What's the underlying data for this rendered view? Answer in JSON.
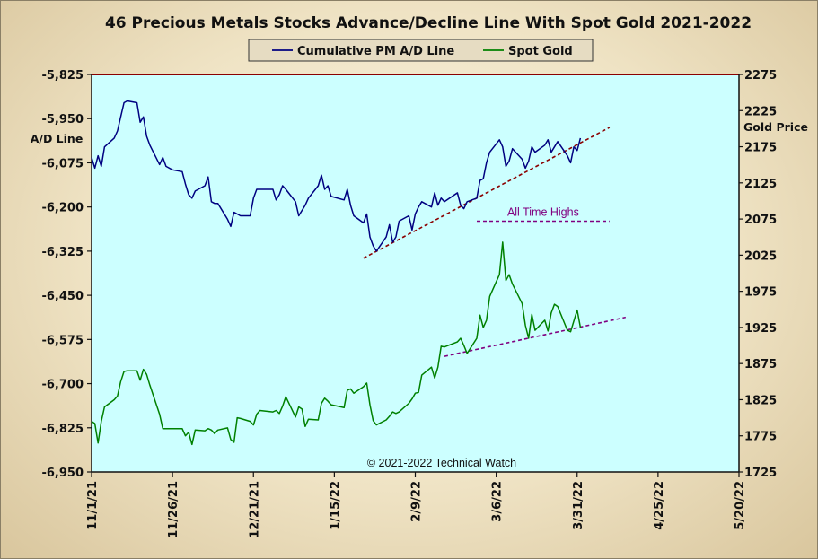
{
  "chart_data": {
    "type": "line",
    "title": "46 Precious Metals Stocks Advance/Decline Line With Spot Gold 2021-2022",
    "legend": {
      "placement": "top-center",
      "entries": [
        "Cumulative PM A/D Line",
        "Spot Gold"
      ]
    },
    "x_tick_labels": [
      "11/1/21",
      "11/26/21",
      "12/21/21",
      "1/15/22",
      "2/9/22",
      "3/6/22",
      "3/31/22",
      "4/25/22",
      "5/20/22"
    ],
    "x_range": [
      "2021-11-01",
      "2022-05-20"
    ],
    "y_left": {
      "label": "A/D Line",
      "range": [
        -6950,
        -5825
      ],
      "ticks": [
        "-5,825",
        "-5,950",
        "-6,075",
        "-6,200",
        "-6,325",
        "-6,450",
        "-6,575",
        "-6,700",
        "-6,825",
        "-6,950"
      ]
    },
    "y_right": {
      "label": "Gold Price",
      "range": [
        1725,
        2275
      ],
      "ticks": [
        "2275",
        "2225",
        "2175",
        "2125",
        "2075",
        "2025",
        "1975",
        "1925",
        "1875",
        "1825",
        "1775",
        "1725"
      ]
    },
    "series": [
      {
        "name": "Cumulative PM A/D Line",
        "axis": "left",
        "color": "#000080",
        "points": [
          [
            "2021-11-01",
            -6060
          ],
          [
            "2021-11-02",
            -6090
          ],
          [
            "2021-11-03",
            -6055
          ],
          [
            "2021-11-04",
            -6085
          ],
          [
            "2021-11-05",
            -6030
          ],
          [
            "2021-11-08",
            -6005
          ],
          [
            "2021-11-09",
            -5985
          ],
          [
            "2021-11-10",
            -5945
          ],
          [
            "2021-11-11",
            -5905
          ],
          [
            "2021-11-12",
            -5900
          ],
          [
            "2021-11-15",
            -5905
          ],
          [
            "2021-11-16",
            -5960
          ],
          [
            "2021-11-17",
            -5945
          ],
          [
            "2021-11-18",
            -6000
          ],
          [
            "2021-11-19",
            -6025
          ],
          [
            "2021-11-22",
            -6080
          ],
          [
            "2021-11-23",
            -6060
          ],
          [
            "2021-11-24",
            -6085
          ],
          [
            "2021-11-26",
            -6095
          ],
          [
            "2021-11-29",
            -6100
          ],
          [
            "2021-11-30",
            -6135
          ],
          [
            "2021-12-01",
            -6165
          ],
          [
            "2021-12-02",
            -6175
          ],
          [
            "2021-12-03",
            -6155
          ],
          [
            "2021-12-06",
            -6140
          ],
          [
            "2021-12-07",
            -6115
          ],
          [
            "2021-12-08",
            -6185
          ],
          [
            "2021-12-09",
            -6190
          ],
          [
            "2021-12-10",
            -6190
          ],
          [
            "2021-12-13",
            -6235
          ],
          [
            "2021-12-14",
            -6255
          ],
          [
            "2021-12-15",
            -6215
          ],
          [
            "2021-12-16",
            -6220
          ],
          [
            "2021-12-17",
            -6225
          ],
          [
            "2021-12-20",
            -6225
          ],
          [
            "2021-12-21",
            -6175
          ],
          [
            "2021-12-22",
            -6150
          ],
          [
            "2021-12-23",
            -6150
          ],
          [
            "2021-12-27",
            -6150
          ],
          [
            "2021-12-28",
            -6180
          ],
          [
            "2021-12-29",
            -6165
          ],
          [
            "2021-12-30",
            -6140
          ],
          [
            "2021-12-31",
            -6150
          ],
          [
            "2022-01-03",
            -6185
          ],
          [
            "2022-01-04",
            -6225
          ],
          [
            "2022-01-05",
            -6210
          ],
          [
            "2022-01-06",
            -6195
          ],
          [
            "2022-01-07",
            -6175
          ],
          [
            "2022-01-10",
            -6140
          ],
          [
            "2022-01-11",
            -6110
          ],
          [
            "2022-01-12",
            -6150
          ],
          [
            "2022-01-13",
            -6140
          ],
          [
            "2022-01-14",
            -6170
          ],
          [
            "2022-01-18",
            -6180
          ],
          [
            "2022-01-19",
            -6150
          ],
          [
            "2022-01-20",
            -6195
          ],
          [
            "2022-01-21",
            -6225
          ],
          [
            "2022-01-24",
            -6245
          ],
          [
            "2022-01-25",
            -6220
          ],
          [
            "2022-01-26",
            -6285
          ],
          [
            "2022-01-27",
            -6310
          ],
          [
            "2022-01-28",
            -6325
          ],
          [
            "2022-01-31",
            -6285
          ],
          [
            "2022-02-01",
            -6250
          ],
          [
            "2022-02-02",
            -6300
          ],
          [
            "2022-02-03",
            -6285
          ],
          [
            "2022-02-04",
            -6240
          ],
          [
            "2022-02-07",
            -6225
          ],
          [
            "2022-02-08",
            -6265
          ],
          [
            "2022-02-09",
            -6220
          ],
          [
            "2022-02-10",
            -6200
          ],
          [
            "2022-02-11",
            -6185
          ],
          [
            "2022-02-14",
            -6200
          ],
          [
            "2022-02-15",
            -6160
          ],
          [
            "2022-02-16",
            -6195
          ],
          [
            "2022-02-17",
            -6175
          ],
          [
            "2022-02-18",
            -6185
          ],
          [
            "2022-02-22",
            -6160
          ],
          [
            "2022-02-23",
            -6195
          ],
          [
            "2022-02-24",
            -6205
          ],
          [
            "2022-02-25",
            -6185
          ],
          [
            "2022-02-28",
            -6175
          ],
          [
            "2022-03-01",
            -6125
          ],
          [
            "2022-03-02",
            -6120
          ],
          [
            "2022-03-03",
            -6075
          ],
          [
            "2022-03-04",
            -6045
          ],
          [
            "2022-03-07",
            -6010
          ],
          [
            "2022-03-08",
            -6030
          ],
          [
            "2022-03-09",
            -6085
          ],
          [
            "2022-03-10",
            -6070
          ],
          [
            "2022-03-11",
            -6035
          ],
          [
            "2022-03-14",
            -6065
          ],
          [
            "2022-03-15",
            -6090
          ],
          [
            "2022-03-16",
            -6070
          ],
          [
            "2022-03-17",
            -6030
          ],
          [
            "2022-03-18",
            -6045
          ],
          [
            "2022-03-21",
            -6025
          ],
          [
            "2022-03-22",
            -6010
          ],
          [
            "2022-03-23",
            -6045
          ],
          [
            "2022-03-24",
            -6030
          ],
          [
            "2022-03-25",
            -6015
          ],
          [
            "2022-03-28",
            -6055
          ],
          [
            "2022-03-29",
            -6075
          ],
          [
            "2022-03-30",
            -6030
          ],
          [
            "2022-03-31",
            -6040
          ],
          [
            "2022-04-01",
            -6005
          ]
        ]
      },
      {
        "name": "Spot Gold",
        "axis": "right",
        "color": "#008000",
        "points": [
          [
            "2021-11-01",
            1795
          ],
          [
            "2021-11-02",
            1792
          ],
          [
            "2021-11-03",
            1765
          ],
          [
            "2021-11-04",
            1795
          ],
          [
            "2021-11-05",
            1815
          ],
          [
            "2021-11-08",
            1825
          ],
          [
            "2021-11-09",
            1830
          ],
          [
            "2021-11-10",
            1850
          ],
          [
            "2021-11-11",
            1864
          ],
          [
            "2021-11-12",
            1865
          ],
          [
            "2021-11-15",
            1865
          ],
          [
            "2021-11-16",
            1852
          ],
          [
            "2021-11-17",
            1867
          ],
          [
            "2021-11-18",
            1860
          ],
          [
            "2021-11-19",
            1845
          ],
          [
            "2021-11-22",
            1805
          ],
          [
            "2021-11-23",
            1785
          ],
          [
            "2021-11-24",
            1785
          ],
          [
            "2021-11-26",
            1785
          ],
          [
            "2021-11-29",
            1785
          ],
          [
            "2021-11-30",
            1775
          ],
          [
            "2021-12-01",
            1780
          ],
          [
            "2021-12-02",
            1763
          ],
          [
            "2021-12-03",
            1783
          ],
          [
            "2021-12-06",
            1782
          ],
          [
            "2021-12-07",
            1785
          ],
          [
            "2021-12-08",
            1783
          ],
          [
            "2021-12-09",
            1778
          ],
          [
            "2021-12-10",
            1783
          ],
          [
            "2021-12-13",
            1786
          ],
          [
            "2021-12-14",
            1770
          ],
          [
            "2021-12-15",
            1766
          ],
          [
            "2021-12-16",
            1800
          ],
          [
            "2021-12-17",
            1799
          ],
          [
            "2021-12-20",
            1795
          ],
          [
            "2021-12-21",
            1790
          ],
          [
            "2021-12-22",
            1805
          ],
          [
            "2021-12-23",
            1810
          ],
          [
            "2021-12-27",
            1808
          ],
          [
            "2021-12-28",
            1810
          ],
          [
            "2021-12-29",
            1806
          ],
          [
            "2021-12-30",
            1816
          ],
          [
            "2021-12-31",
            1829
          ],
          [
            "2022-01-03",
            1801
          ],
          [
            "2022-01-04",
            1815
          ],
          [
            "2022-01-05",
            1812
          ],
          [
            "2022-01-06",
            1788
          ],
          [
            "2022-01-07",
            1798
          ],
          [
            "2022-01-10",
            1797
          ],
          [
            "2022-01-11",
            1820
          ],
          [
            "2022-01-12",
            1827
          ],
          [
            "2022-01-13",
            1823
          ],
          [
            "2022-01-14",
            1818
          ],
          [
            "2022-01-18",
            1814
          ],
          [
            "2022-01-19",
            1838
          ],
          [
            "2022-01-20",
            1840
          ],
          [
            "2022-01-21",
            1834
          ],
          [
            "2022-01-24",
            1843
          ],
          [
            "2022-01-25",
            1848
          ],
          [
            "2022-01-26",
            1818
          ],
          [
            "2022-01-27",
            1796
          ],
          [
            "2022-01-28",
            1790
          ],
          [
            "2022-01-31",
            1797
          ],
          [
            "2022-02-01",
            1802
          ],
          [
            "2022-02-02",
            1808
          ],
          [
            "2022-02-03",
            1806
          ],
          [
            "2022-02-04",
            1808
          ],
          [
            "2022-02-07",
            1820
          ],
          [
            "2022-02-08",
            1826
          ],
          [
            "2022-02-09",
            1834
          ],
          [
            "2022-02-10",
            1835
          ],
          [
            "2022-02-11",
            1859
          ],
          [
            "2022-02-14",
            1870
          ],
          [
            "2022-02-15",
            1855
          ],
          [
            "2022-02-16",
            1870
          ],
          [
            "2022-02-17",
            1899
          ],
          [
            "2022-02-18",
            1898
          ],
          [
            "2022-02-22",
            1905
          ],
          [
            "2022-02-23",
            1910
          ],
          [
            "2022-02-24",
            1900
          ],
          [
            "2022-02-25",
            1889
          ],
          [
            "2022-02-28",
            1910
          ],
          [
            "2022-03-01",
            1942
          ],
          [
            "2022-03-02",
            1925
          ],
          [
            "2022-03-03",
            1935
          ],
          [
            "2022-03-04",
            1968
          ],
          [
            "2022-03-07",
            1998
          ],
          [
            "2022-03-08",
            2043
          ],
          [
            "2022-03-09",
            1990
          ],
          [
            "2022-03-10",
            1998
          ],
          [
            "2022-03-11",
            1985
          ],
          [
            "2022-03-14",
            1958
          ],
          [
            "2022-03-15",
            1928
          ],
          [
            "2022-03-16",
            1910
          ],
          [
            "2022-03-17",
            1943
          ],
          [
            "2022-03-18",
            1921
          ],
          [
            "2022-03-21",
            1935
          ],
          [
            "2022-03-22",
            1920
          ],
          [
            "2022-03-23",
            1945
          ],
          [
            "2022-03-24",
            1957
          ],
          [
            "2022-03-25",
            1954
          ],
          [
            "2022-03-28",
            1921
          ],
          [
            "2022-03-29",
            1919
          ],
          [
            "2022-03-30",
            1934
          ],
          [
            "2022-03-31",
            1949
          ],
          [
            "2022-04-01",
            1925
          ]
        ]
      }
    ],
    "annotations": [
      {
        "text": "All Time Highs",
        "color": "#800080",
        "kind": "dashed-level",
        "y": 2072,
        "axis": "right",
        "x_from": "2022-02-28",
        "x_to": "2022-04-10"
      }
    ],
    "trendlines": [
      {
        "axis": "left",
        "color": "#8B0000",
        "from": [
          "2022-01-24",
          -6345
        ],
        "to": [
          "2022-04-10",
          -5975
        ]
      },
      {
        "axis": "right",
        "color": "#800080",
        "from": [
          "2022-02-18",
          1885
        ],
        "to": [
          "2022-04-15",
          1939
        ]
      }
    ],
    "copyright": "© 2021-2022  Technical  Watch",
    "grid": false,
    "plot_background": "#ccffff"
  }
}
